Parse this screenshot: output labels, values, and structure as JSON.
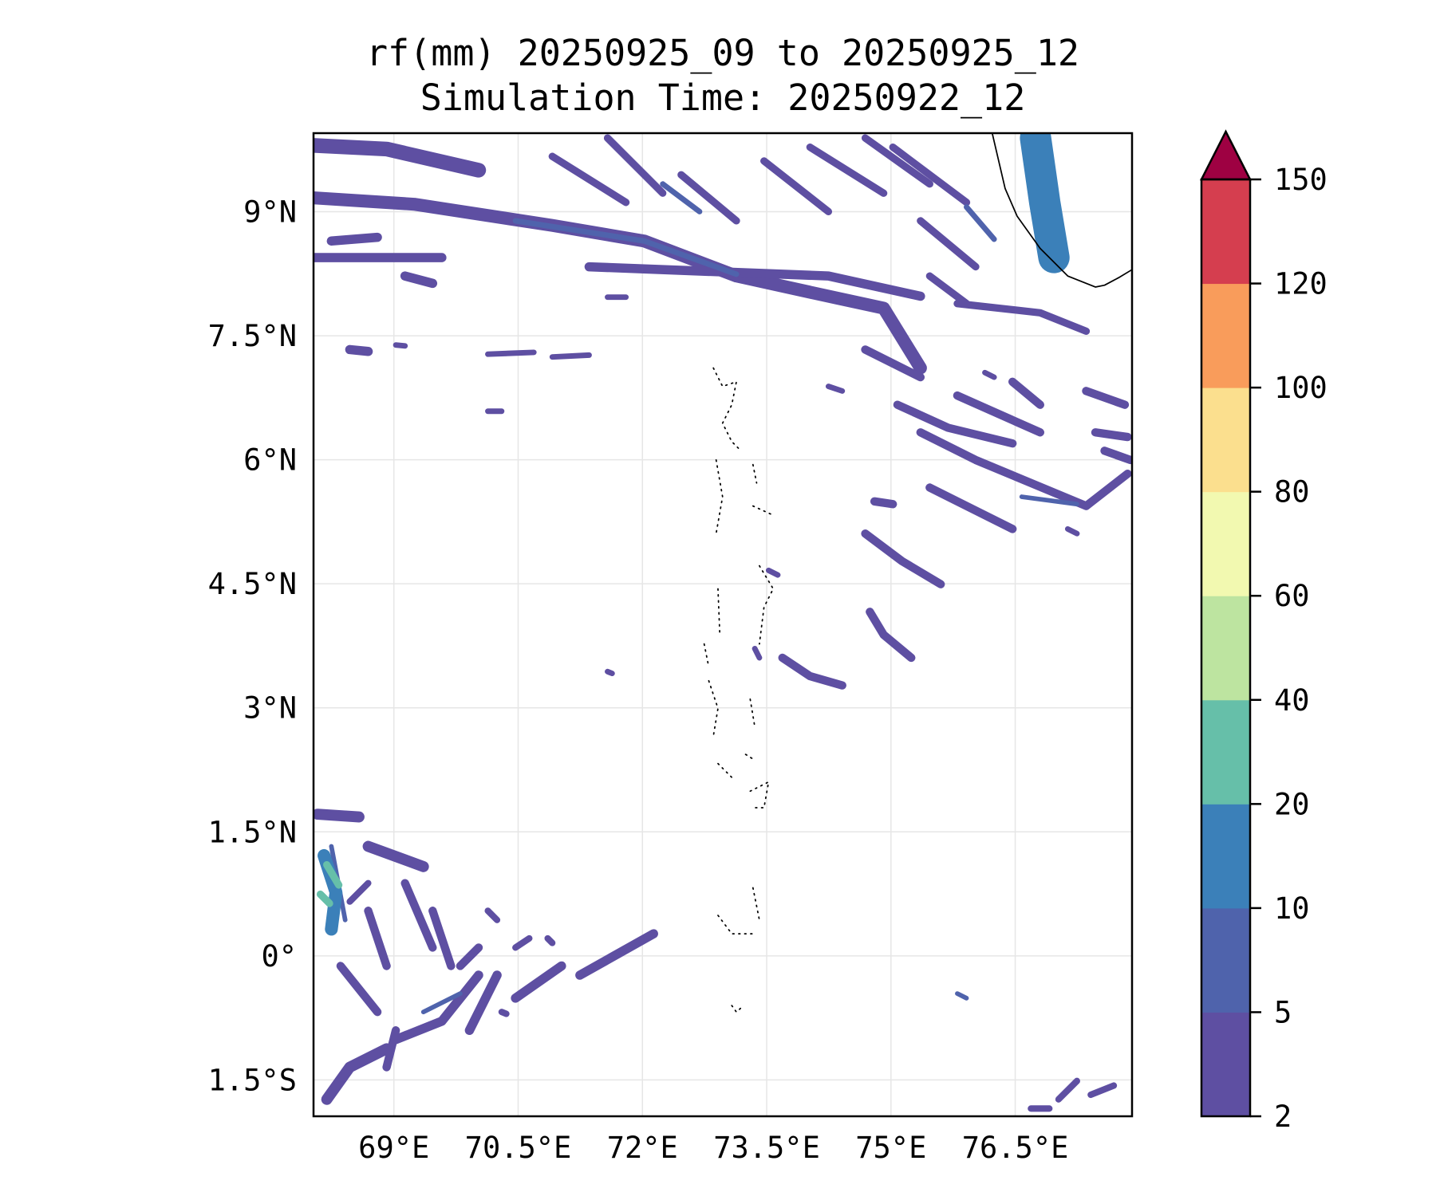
{
  "chart_data": {
    "type": "heatmap",
    "title": "rf(mm) 20250925_09 to 20250925_12",
    "subtitle": "Simulation Time: 20250922_12",
    "xlabel": "",
    "ylabel": "",
    "xlim": [
      68.03,
      77.91
    ],
    "ylim": [
      -1.94,
      9.95
    ],
    "x_ticks": [
      69,
      70.5,
      72,
      73.5,
      75,
      76.5
    ],
    "x_tick_labels": [
      "69°E",
      "70.5°E",
      "72°E",
      "73.5°E",
      "75°E",
      "76.5°E"
    ],
    "y_ticks": [
      -1.5,
      0,
      1.5,
      3,
      4.5,
      6,
      7.5,
      9
    ],
    "y_tick_labels": [
      "1.5°S",
      "0°",
      "1.5°N",
      "3°N",
      "4.5°N",
      "6°N",
      "7.5°N",
      "9°N"
    ],
    "grid": true,
    "colorbar": {
      "levels": [
        2,
        5,
        10,
        20,
        40,
        60,
        80,
        100,
        120,
        150
      ],
      "labels": [
        "2",
        "5",
        "10",
        "20",
        "40",
        "60",
        "80",
        "100",
        "120",
        "150"
      ],
      "colors": [
        "#5e4fa2",
        "#4f63ac",
        "#3b80b9",
        "#66bfa9",
        "#bde4a0",
        "#f2f9b0",
        "#fbdf8e",
        "#f99c5b",
        "#d53e4f"
      ],
      "extend_color": "#9e0142",
      "extend": "max",
      "placement": "right"
    }
  }
}
